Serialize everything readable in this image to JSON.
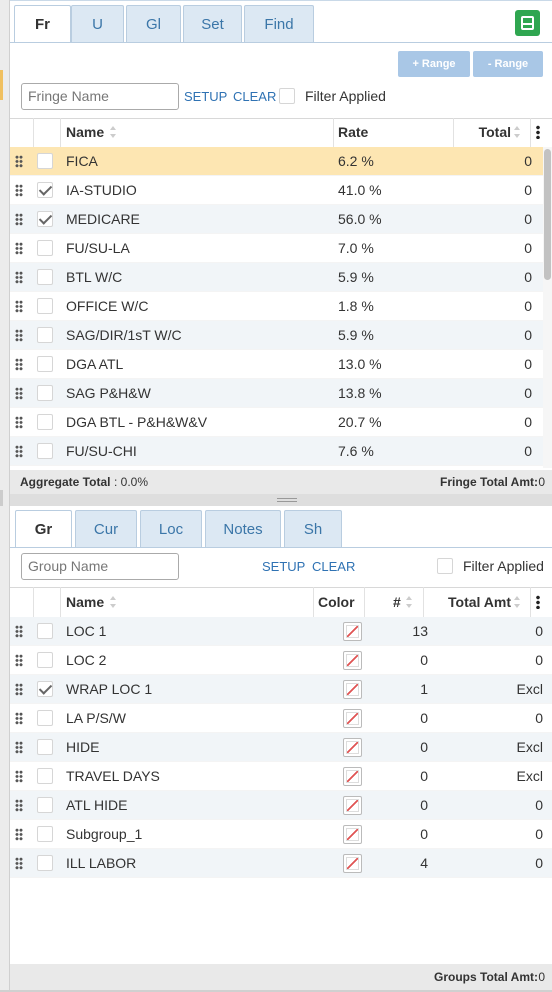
{
  "fringes": {
    "tabs": [
      "Fr",
      "U",
      "Gl",
      "Set",
      "Find"
    ],
    "range_buttons": [
      "+ Range",
      "- Range"
    ],
    "search_placeholder": "Fringe Name",
    "actions": [
      "SETUP",
      "CLEAR"
    ],
    "filter_label": "Filter Applied",
    "filter_checked": false,
    "columns": [
      "Name",
      "Rate",
      "Total"
    ],
    "rows": [
      {
        "name": "FICA",
        "rate": "6.2 %",
        "total": 0,
        "checked": false,
        "selected": true
      },
      {
        "name": "IA-STUDIO",
        "rate": "41.0 %",
        "total": 0,
        "checked": true
      },
      {
        "name": "MEDICARE",
        "rate": "56.0 %",
        "total": 0,
        "checked": true
      },
      {
        "name": "FU/SU-LA",
        "rate": "7.0 %",
        "total": 0,
        "checked": false
      },
      {
        "name": "BTL W/C",
        "rate": "5.9 %",
        "total": 0,
        "checked": false
      },
      {
        "name": "OFFICE W/C",
        "rate": "1.8 %",
        "total": 0,
        "checked": false
      },
      {
        "name": "SAG/DIR/1sT W/C",
        "rate": "5.9 %",
        "total": 0,
        "checked": false
      },
      {
        "name": "DGA ATL",
        "rate": "13.0 %",
        "total": 0,
        "checked": false
      },
      {
        "name": "SAG P&H&W",
        "rate": "13.8 %",
        "total": 0,
        "checked": false
      },
      {
        "name": "DGA BTL - P&H&W&V",
        "rate": "20.7 %",
        "total": 0,
        "checked": false
      },
      {
        "name": "FU/SU-CHI",
        "rate": "7.6 %",
        "total": 0,
        "checked": false
      }
    ],
    "footer": {
      "left_label": "Aggregate Total",
      "left_value": ": 0.0%",
      "right_label": "Fringe Total Amt:",
      "right_value": "0"
    }
  },
  "groups": {
    "tabs": [
      "Gr",
      "Cur",
      "Loc",
      "Notes",
      "Sh"
    ],
    "search_placeholder": "Group Name",
    "actions": [
      "SETUP",
      "CLEAR"
    ],
    "filter_label": "Filter Applied",
    "filter_checked": false,
    "columns": [
      "Name",
      "Color",
      "#",
      "Total Amt"
    ],
    "rows": [
      {
        "name": "LOC 1",
        "count": 13,
        "total": "0",
        "checked": false
      },
      {
        "name": "LOC 2",
        "count": 0,
        "total": "0",
        "checked": false
      },
      {
        "name": "WRAP LOC 1",
        "count": 1,
        "total": "Excl",
        "checked": true
      },
      {
        "name": "LA P/S/W",
        "count": 0,
        "total": "0",
        "checked": false
      },
      {
        "name": "HIDE",
        "count": 0,
        "total": "Excl",
        "checked": false
      },
      {
        "name": "TRAVEL DAYS",
        "count": 0,
        "total": "Excl",
        "checked": false
      },
      {
        "name": "ATL HIDE",
        "count": 0,
        "total": "0",
        "checked": false
      },
      {
        "name": "Subgroup_1",
        "count": 0,
        "total": "0",
        "checked": false
      },
      {
        "name": "ILL LABOR",
        "count": 4,
        "total": "0",
        "checked": false
      }
    ],
    "footer": {
      "right_label": "Groups Total Amt:",
      "right_value": "0"
    }
  }
}
